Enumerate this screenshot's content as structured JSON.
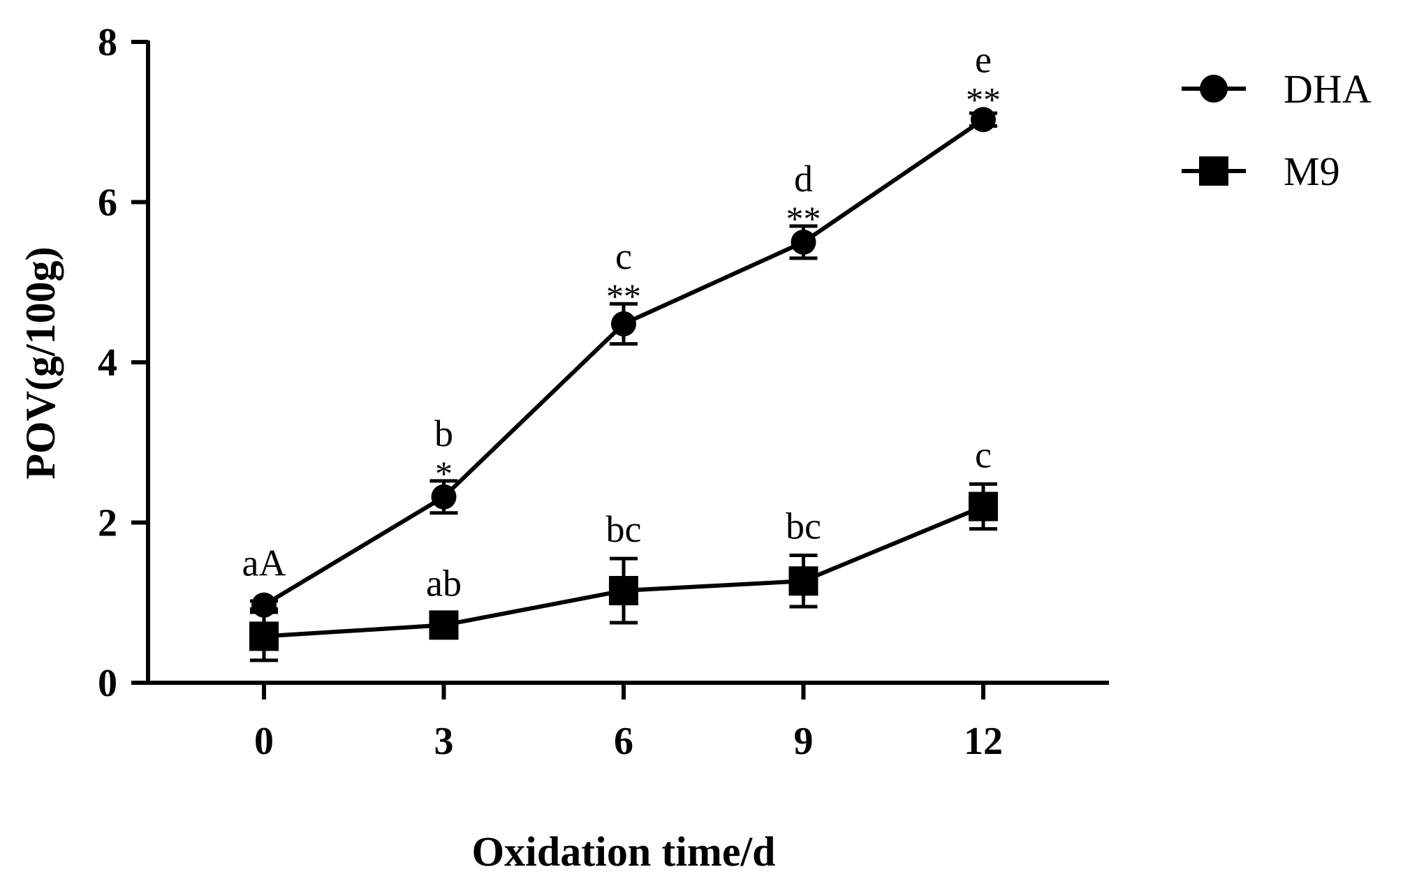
{
  "chart_data": {
    "type": "line",
    "title": "",
    "xlabel": "Oxidation time/d",
    "ylabel": "POV(g/100g)",
    "x": [
      0,
      3,
      6,
      9,
      12
    ],
    "x_ticks": [
      "0",
      "3",
      "6",
      "9",
      "12"
    ],
    "y_ticks": [
      "0",
      "2",
      "4",
      "6",
      "8"
    ],
    "xlim": [
      -2.3,
      14
    ],
    "ylim": [
      0,
      8
    ],
    "grid": false,
    "legend_position": "top-right",
    "series": [
      {
        "name": "DHA",
        "marker": "circle",
        "values": [
          0.97,
          2.32,
          4.48,
          5.5,
          7.03
        ],
        "errors": [
          0.05,
          0.2,
          0.25,
          0.2,
          0.08
        ],
        "letters": [
          "aA",
          "b",
          "c",
          "d",
          "e"
        ],
        "stars": [
          "",
          "*",
          "**",
          "**",
          "**"
        ]
      },
      {
        "name": "M9",
        "marker": "square",
        "values": [
          0.58,
          0.72,
          1.15,
          1.27,
          2.2
        ],
        "errors": [
          0.3,
          0.08,
          0.4,
          0.32,
          0.28
        ],
        "letters": [
          "",
          "ab",
          "bc",
          "bc",
          "c"
        ],
        "stars": [
          "",
          "",
          "",
          "",
          ""
        ]
      }
    ],
    "colors": {
      "line": "#000000",
      "marker": "#000000"
    }
  }
}
